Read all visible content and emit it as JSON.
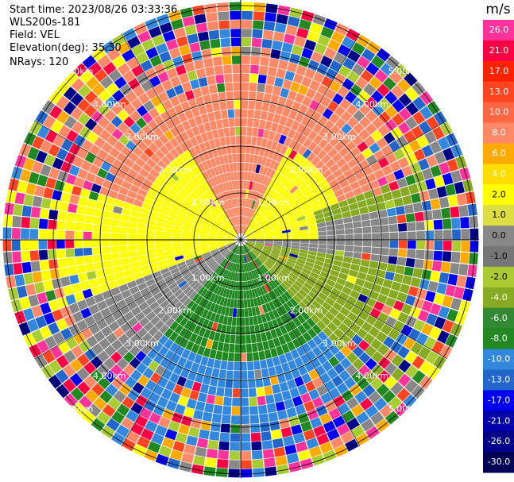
{
  "header": {
    "start_time": "Start time: 2023/08/26 03:33:36",
    "instrument": "WLS200s-181",
    "field": "Field: VEL",
    "elevation": "Elevation(deg): 35.30",
    "nrays": "NRays: 120"
  },
  "chart_data": {
    "type": "ppi",
    "field": "VEL",
    "nrays": 120,
    "elevation_deg": 35.3,
    "range_rings": [
      "1.00km",
      "2.00km",
      "3.00km",
      "4.00km",
      "5.00km"
    ],
    "colorbar": {
      "unit": "m/s",
      "ticks": [
        "26.0",
        "21.0",
        "17.0",
        "13.0",
        "10.0",
        "8.0",
        "6.0",
        "4.0",
        "2.0",
        "1.0",
        "0.0",
        "-1.0",
        "-2.0",
        "-4.0",
        "-6.0",
        "-8.0",
        "-10.0",
        "-13.0",
        "-17.0",
        "-21.0",
        "-26.0",
        "-30.0"
      ],
      "colors": [
        "#ff3399",
        "#ff0044",
        "#ff2200",
        "#ff4422",
        "#ff6644",
        "#ff8866",
        "#ffaa00",
        "#ffdd00",
        "#ffff00",
        "#dddd44",
        "#888888",
        "#777777",
        "#aacc33",
        "#88aa22",
        "#338833",
        "#228822",
        "#3388dd",
        "#2266cc",
        "#0000ee",
        "#0000aa",
        "#000088",
        "#000055"
      ]
    }
  },
  "colors": {
    "positive_far": "#ff8866",
    "positive_near": "#ffff00",
    "zero": "#888888",
    "negative_near": "#88aa22",
    "negative_mid": "#228822",
    "negative_far": "#3388dd"
  }
}
